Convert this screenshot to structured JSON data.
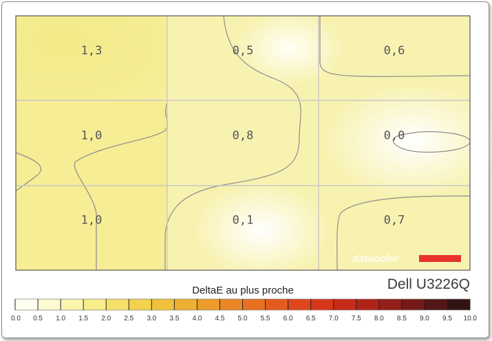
{
  "chart_data": {
    "type": "heatmap",
    "rows": 3,
    "cols": 3,
    "values": [
      [
        "1,3",
        "0,5",
        "0,6"
      ],
      [
        "1,0",
        "0,8",
        "0,0"
      ],
      [
        "1,0",
        "0,1",
        "0,7"
      ]
    ],
    "numeric_values": [
      [
        1.3,
        0.5,
        0.6
      ],
      [
        1.0,
        0.8,
        0.0
      ],
      [
        1.0,
        0.1,
        0.7
      ]
    ],
    "colorbar": {
      "title": "DeltaE au plus proche",
      "ticks": [
        "0.0",
        "0.5",
        "1.0",
        "1.5",
        "2.0",
        "2.5",
        "3.0",
        "3.5",
        "4.0",
        "4.5",
        "5.0",
        "5.5",
        "6.0",
        "6.5",
        "7.0",
        "7.5",
        "8.0",
        "8.5",
        "9.0",
        "9.5",
        "10.0"
      ],
      "range": [
        0,
        10
      ],
      "colors": [
        "#fffff0",
        "#fdfbd2",
        "#fbf5ae",
        "#f8ec8c",
        "#f5e06a",
        "#f2d24e",
        "#f0c23c",
        "#eeb030",
        "#ec9c28",
        "#ea8624",
        "#e87020",
        "#e55a1e",
        "#e0461c",
        "#d8361a",
        "#c82a18",
        "#b02418",
        "#941e18",
        "#741a18",
        "#541616",
        "#321212"
      ]
    },
    "grid": true,
    "model": "Dell U3226Q",
    "logo": "datacolor"
  }
}
